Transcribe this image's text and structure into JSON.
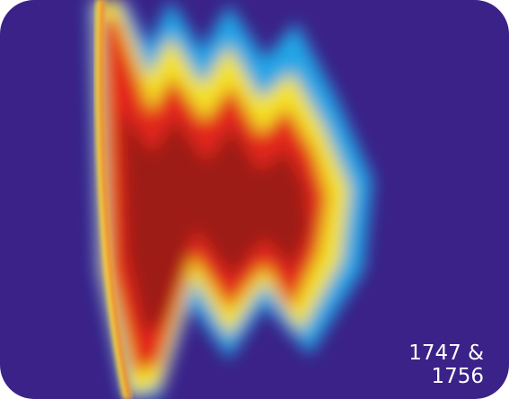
{
  "caption": "1747 & 1756"
}
